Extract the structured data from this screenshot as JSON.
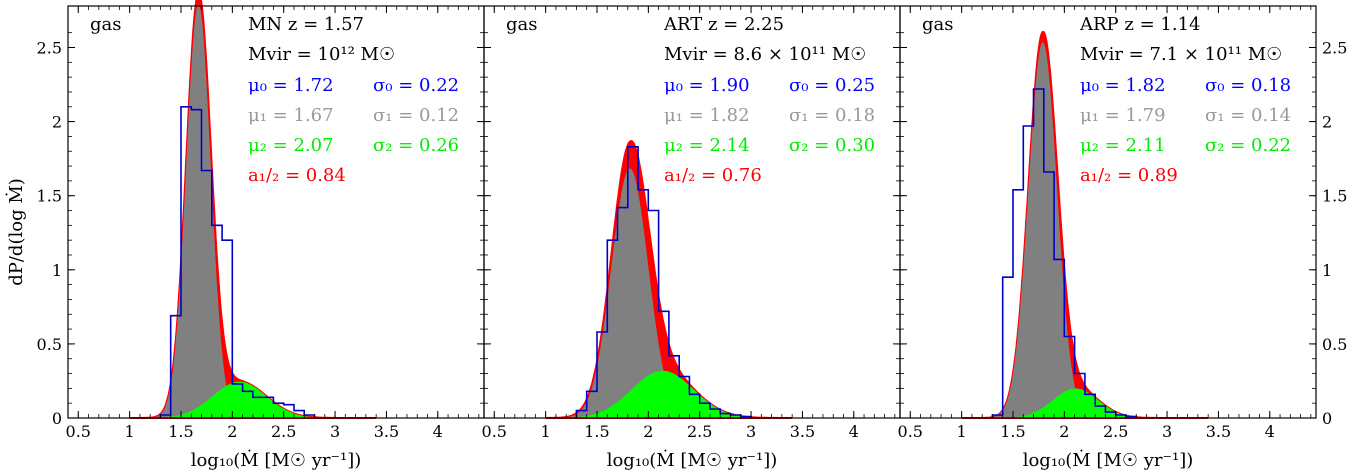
{
  "figure": {
    "ylabel": "dP/d(log Ṁ)",
    "xlabel": "log₁₀(Ṁ [M☉ yr⁻¹])",
    "colors": {
      "mu0": "#0000ff",
      "mu1": "#999999",
      "mu2": "#00ee00",
      "a": "#ff0000",
      "fill_total": "#ff0000",
      "fill_gas": "#808080",
      "fill_second": "#00ff00",
      "hist": "#0000cc"
    }
  },
  "chart_data": [
    {
      "type": "area",
      "xlim": [
        0.4,
        4.45
      ],
      "ylim": [
        0,
        2.78
      ],
      "xticks": [
        0.5,
        1,
        1.5,
        2,
        2.5,
        3,
        3.5,
        4
      ],
      "xtick_labels": [
        "0.5",
        "1",
        "1.5",
        "2",
        "2.5",
        "3",
        "3.5",
        "4"
      ],
      "yticks": [
        0,
        0.5,
        1,
        1.5,
        2,
        2.5
      ],
      "ytick_labels": [
        "0",
        "0.5",
        "1",
        "1.5",
        "2",
        "2.5"
      ],
      "corner_label": "gas",
      "annotations": {
        "line1": "MN z = 1.57",
        "line2": "Mvir = 10¹² M☉",
        "mu0": "μ₀ = 1.72",
        "sigma0": "σ₀ = 0.22",
        "mu1": "μ₁ = 1.67",
        "sigma1": "σ₁ = 0.12",
        "mu2": "μ₂ = 2.07",
        "sigma2": "σ₂ = 0.26",
        "a": "a₁/₂ = 0.84"
      },
      "components": {
        "mu1": 1.67,
        "sigma1": 0.12,
        "mu2": 2.07,
        "sigma2": 0.26,
        "a": 0.84
      },
      "histogram": {
        "edges": [
          1.3,
          1.4,
          1.5,
          1.6,
          1.7,
          1.8,
          1.9,
          2.0,
          2.1,
          2.2,
          2.3,
          2.4,
          2.5,
          2.6,
          2.7,
          2.8
        ],
        "values": [
          0.02,
          0.69,
          2.1,
          2.08,
          1.67,
          1.3,
          1.2,
          0.23,
          0.18,
          0.14,
          0.14,
          0.1,
          0.09,
          0.05,
          0.02
        ]
      }
    },
    {
      "type": "area",
      "xlim": [
        0.4,
        4.45
      ],
      "ylim": [
        0,
        2.78
      ],
      "xticks": [
        0.5,
        1,
        1.5,
        2,
        2.5,
        3,
        3.5,
        4
      ],
      "xtick_labels": [
        "0.5",
        "1",
        "1.5",
        "2",
        "2.5",
        "3",
        "3.5",
        "4"
      ],
      "yticks": [
        0,
        0.5,
        1,
        1.5,
        2,
        2.5
      ],
      "ytick_labels": [
        "0",
        "0.5",
        "1",
        "1.5",
        "2",
        "2.5"
      ],
      "corner_label": "gas",
      "annotations": {
        "line1": "ART z = 2.25",
        "line2": "Mvir = 8.6 × 10¹¹ M☉",
        "mu0": "μ₀ = 1.90",
        "sigma0": "σ₀ = 0.25",
        "mu1": "μ₁ = 1.82",
        "sigma1": "σ₁ = 0.18",
        "mu2": "μ₂ = 2.14",
        "sigma2": "σ₂ = 0.30",
        "a": "a₁/₂ = 0.76"
      },
      "components": {
        "mu1": 1.82,
        "sigma1": 0.18,
        "mu2": 2.14,
        "sigma2": 0.3,
        "a": 0.76
      },
      "histogram": {
        "edges": [
          1.3,
          1.4,
          1.5,
          1.6,
          1.7,
          1.8,
          1.9,
          2.0,
          2.1,
          2.2,
          2.3,
          2.4,
          2.5,
          2.6,
          2.7,
          2.8,
          2.9,
          3.0
        ],
        "values": [
          0.05,
          0.18,
          0.58,
          1.2,
          1.42,
          1.83,
          1.54,
          1.4,
          0.72,
          0.42,
          0.28,
          0.16,
          0.1,
          0.06,
          0.03,
          0.02,
          0.01
        ]
      }
    },
    {
      "type": "area",
      "xlim": [
        0.4,
        4.45
      ],
      "ylim": [
        0,
        2.78
      ],
      "xticks": [
        0.5,
        1,
        1.5,
        2,
        2.5,
        3,
        3.5,
        4
      ],
      "xtick_labels": [
        "0.5",
        "1",
        "1.5",
        "2",
        "2.5",
        "3",
        "3.5",
        "4"
      ],
      "yticks": [
        0,
        0.5,
        1,
        1.5,
        2,
        2.5
      ],
      "ytick_labels": [
        "0",
        "0.5",
        "1",
        "1.5",
        "2",
        "2.5"
      ],
      "corner_label": "gas",
      "annotations": {
        "line1": "ARP z = 1.14",
        "line2": "Mvir = 7.1 × 10¹¹ M☉",
        "mu0": "μ₀ = 1.82",
        "sigma0": "σ₀ = 0.18",
        "mu1": "μ₁ = 1.79",
        "sigma1": "σ₁ = 0.14",
        "mu2": "μ₂ = 2.11",
        "sigma2": "σ₂ = 0.22",
        "a": "a₁/₂ = 0.89"
      },
      "components": {
        "mu1": 1.79,
        "sigma1": 0.14,
        "mu2": 2.11,
        "sigma2": 0.22,
        "a": 0.89
      },
      "histogram": {
        "edges": [
          1.3,
          1.4,
          1.5,
          1.6,
          1.7,
          1.8,
          1.9,
          2.0,
          2.1,
          2.2,
          2.3,
          2.4,
          2.5,
          2.6,
          2.7
        ],
        "values": [
          0.02,
          0.95,
          1.54,
          1.97,
          2.22,
          1.66,
          1.07,
          0.55,
          0.3,
          0.16,
          0.08,
          0.04,
          0.02,
          0.01
        ]
      }
    }
  ]
}
